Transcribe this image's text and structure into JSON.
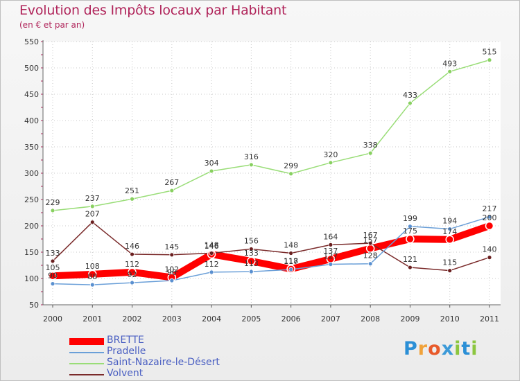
{
  "header": {
    "title": "Evolution des Impôts locaux par Habitant",
    "subtitle": "(en € et par an)"
  },
  "logo": {
    "letters": [
      "P",
      "r",
      "o",
      "x",
      "i",
      "t",
      "i"
    ],
    "colors": [
      "#2b8fd6",
      "#f0a23a",
      "#e85a2a",
      "#3c9ad8",
      "#8cc63f",
      "#2b8fd6",
      "#8cc63f"
    ]
  },
  "chart_data": {
    "type": "line",
    "title": "Evolution des Impôts locaux par Habitant",
    "subtitle": "(en € et par an)",
    "xlabel": "",
    "ylabel": "",
    "ylim": [
      50,
      550
    ],
    "yticks": [
      50,
      100,
      150,
      200,
      250,
      300,
      350,
      400,
      450,
      500,
      550
    ],
    "x": [
      "2000",
      "2001",
      "2002",
      "2003",
      "2004",
      "2005",
      "2006",
      "2007",
      "2008",
      "2009",
      "2010",
      "2011"
    ],
    "grid": true,
    "legend_position": "bottom-left",
    "series": [
      {
        "name": "BRETTE",
        "color": "#ff0000",
        "values": [
          105,
          108,
          112,
          102,
          146,
          133,
          118,
          137,
          157,
          175,
          174,
          200
        ],
        "labels": [
          "105",
          "108",
          "112",
          "102",
          "146",
          "133",
          "118",
          "137",
          "157",
          "175",
          "174",
          "200"
        ]
      },
      {
        "name": "Pradelle",
        "color": "#6a9fd8",
        "values": [
          90,
          88,
          92,
          96,
          112,
          113,
          117,
          127,
          128,
          199,
          194,
          217
        ],
        "labels": [
          "90",
          "88",
          "92",
          "96",
          "112",
          "113",
          "117",
          "127",
          "128",
          "199",
          "194",
          "217"
        ]
      },
      {
        "name": "Saint-Nazaire-le-Désert",
        "color": "#99dd77",
        "values": [
          229,
          237,
          251,
          267,
          304,
          316,
          299,
          320,
          338,
          433,
          493,
          515
        ],
        "labels": [
          "229",
          "237",
          "251",
          "267",
          "304",
          "316",
          "299",
          "320",
          "338",
          "433",
          "493",
          "515"
        ]
      },
      {
        "name": "Volvent",
        "color": "#7a2a2a",
        "values": [
          133,
          207,
          146,
          145,
          148,
          156,
          148,
          164,
          167,
          121,
          115,
          140
        ],
        "labels": [
          "133",
          "207",
          "146",
          "145",
          "148",
          "156",
          "148",
          "164",
          "167",
          "121",
          "115",
          "140"
        ]
      }
    ]
  }
}
